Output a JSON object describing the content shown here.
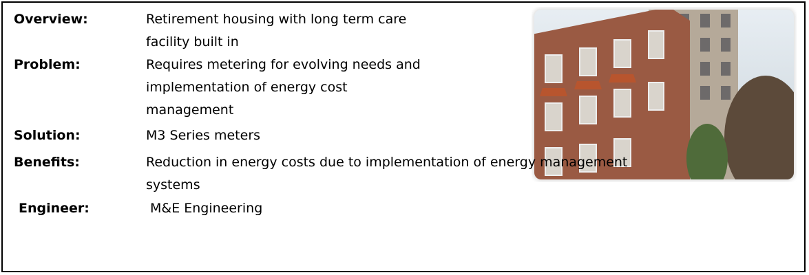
{
  "rows": [
    {
      "label": "Overview:",
      "lines": [
        "Retirement housing with long term care",
        "facility built in"
      ]
    },
    {
      "label": "Problem:",
      "lines": [
        "Requires metering for evolving needs and",
        "implementation of energy cost",
        "management"
      ]
    },
    {
      "label": "Solution:",
      "lines": [
        "M3 Series meters"
      ]
    },
    {
      "label": "Benefits:",
      "lines": [
        "Reduction in energy costs due to implementation of energy management",
        "systems"
      ]
    },
    {
      "label": "Engineer:",
      "lines": [
        "M&E Engineering"
      ]
    }
  ]
}
